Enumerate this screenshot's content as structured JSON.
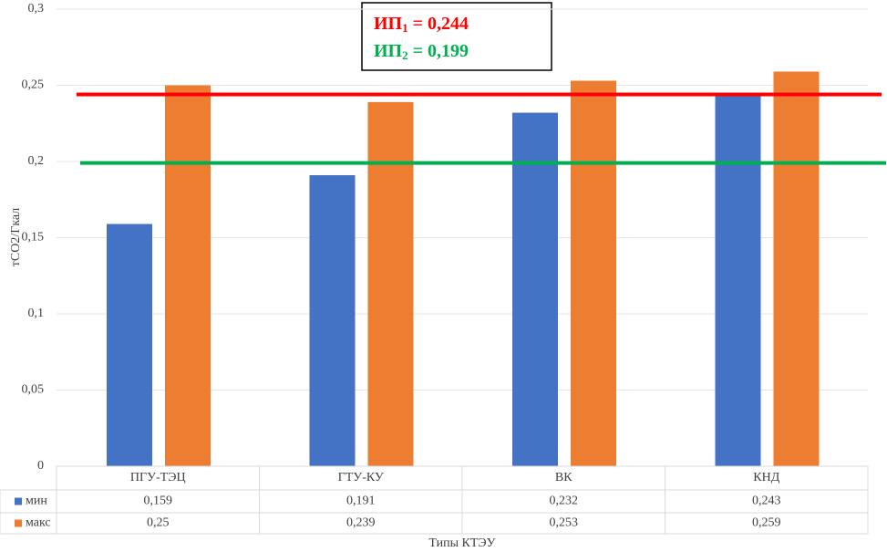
{
  "chart_data": {
    "type": "bar",
    "y_label": "тСО2/Гкал",
    "x_label": "Типы КТЭУ",
    "categories": [
      "ПГУ-ТЭЦ",
      "ГТУ-КУ",
      "ВК",
      "КНД"
    ],
    "series": [
      {
        "name": "мин",
        "color": "#4472c4",
        "values": [
          0.159,
          0.191,
          0.232,
          0.243
        ],
        "value_labels": [
          "0,159",
          "0,191",
          "0,232",
          "0,243"
        ]
      },
      {
        "name": "макс",
        "color": "#ed7d31",
        "values": [
          0.25,
          0.239,
          0.253,
          0.259
        ],
        "value_labels": [
          "0,25",
          "0,239",
          "0,253",
          "0,259"
        ]
      }
    ],
    "ylim": [
      0,
      0.3
    ],
    "yticks": [
      0,
      {
        "value": 0.05,
        "label": "0,05"
      },
      {
        "value": 0.1,
        "label": "0,1"
      },
      {
        "value": 0.15,
        "label": "0,15"
      },
      {
        "value": 0.2,
        "label": "0,2"
      },
      {
        "value": 0.25,
        "label": "0,25"
      },
      {
        "value": 0.3,
        "label": "0,3"
      }
    ],
    "grid": true,
    "reference_lines": [
      {
        "text": "ИП",
        "sub": "1",
        "rest": " = 0,244",
        "value": 0.244,
        "color": "#ff0000"
      },
      {
        "text": "ИП",
        "sub": "2",
        "rest": " = 0,199",
        "value": 0.199,
        "color": "#00b050"
      }
    ]
  }
}
